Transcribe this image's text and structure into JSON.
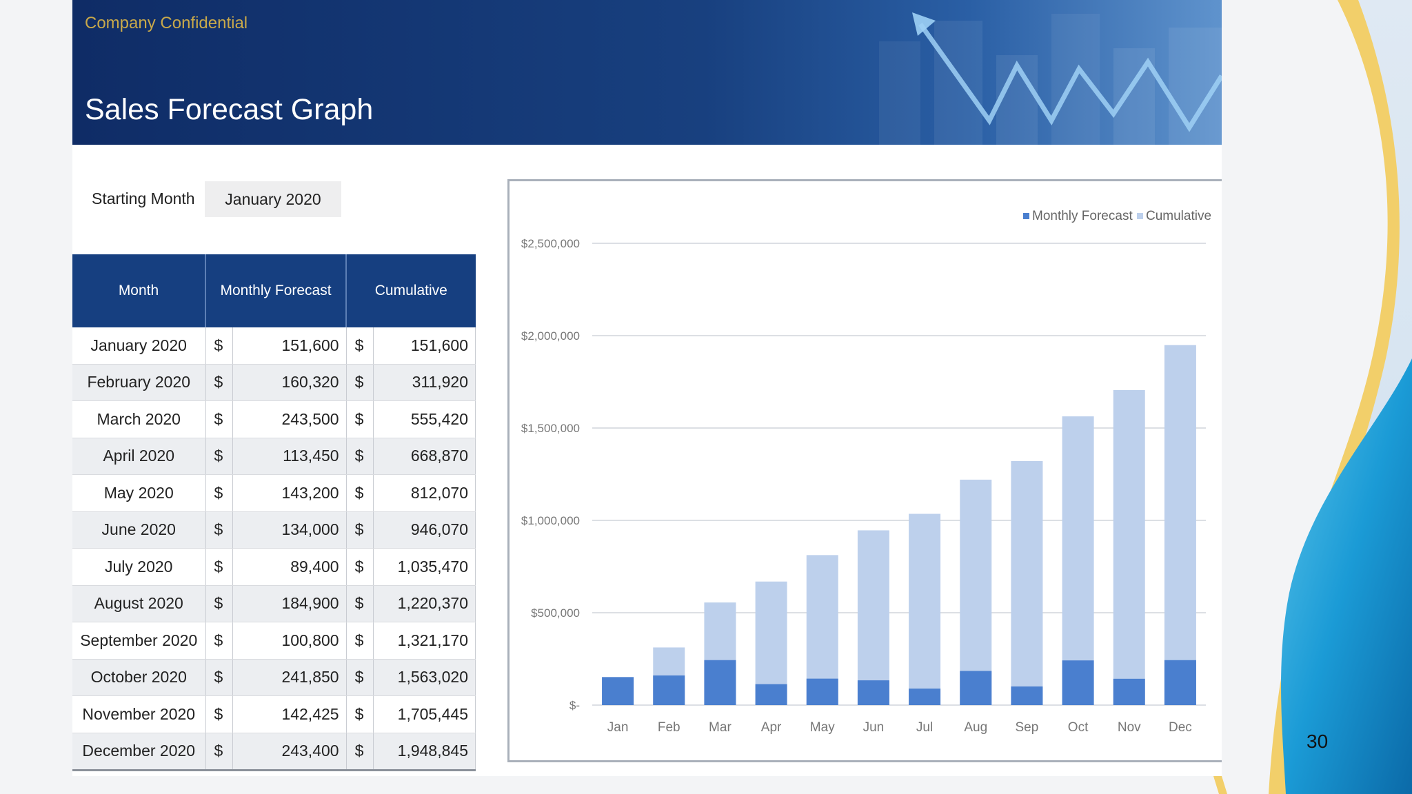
{
  "header": {
    "confidential": "Company Confidential",
    "title": "Sales Forecast Graph"
  },
  "inputs": {
    "starting_month_label": "Starting Month",
    "starting_month_value": "January 2020"
  },
  "table": {
    "headers": [
      "Month",
      "Monthly Forecast",
      "Cumulative"
    ],
    "currency_symbol": "$",
    "rows": [
      {
        "month": "January 2020",
        "forecast": "151,600",
        "cumulative": "151,600"
      },
      {
        "month": "February 2020",
        "forecast": "160,320",
        "cumulative": "311,920"
      },
      {
        "month": "March 2020",
        "forecast": "243,500",
        "cumulative": "555,420"
      },
      {
        "month": "April 2020",
        "forecast": "113,450",
        "cumulative": "668,870"
      },
      {
        "month": "May 2020",
        "forecast": "143,200",
        "cumulative": "812,070"
      },
      {
        "month": "June 2020",
        "forecast": "134,000",
        "cumulative": "946,070"
      },
      {
        "month": "July 2020",
        "forecast": "89,400",
        "cumulative": "1,035,470"
      },
      {
        "month": "August 2020",
        "forecast": "184,900",
        "cumulative": "1,220,370"
      },
      {
        "month": "September 2020",
        "forecast": "100,800",
        "cumulative": "1,321,170"
      },
      {
        "month": "October 2020",
        "forecast": "241,850",
        "cumulative": "1,563,020"
      },
      {
        "month": "November 2020",
        "forecast": "142,425",
        "cumulative": "1,705,445"
      },
      {
        "month": "December 2020",
        "forecast": "243,400",
        "cumulative": "1,948,845"
      }
    ]
  },
  "chart_data": {
    "type": "bar",
    "categories": [
      "Jan",
      "Feb",
      "Mar",
      "Apr",
      "May",
      "Jun",
      "Jul",
      "Aug",
      "Sep",
      "Oct",
      "Nov",
      "Dec"
    ],
    "series": [
      {
        "name": "Monthly Forecast",
        "values": [
          151600,
          160320,
          243500,
          113450,
          143200,
          134000,
          89400,
          184900,
          100800,
          241850,
          142425,
          243400
        ]
      },
      {
        "name": "Cumulative",
        "values": [
          151600,
          311920,
          555420,
          668870,
          812070,
          946070,
          1035470,
          1220370,
          1321170,
          1563020,
          1705445,
          1948845
        ]
      }
    ],
    "ylim": [
      0,
      2500000
    ],
    "y_ticks": [
      0,
      500000,
      1000000,
      1500000,
      2000000,
      2500000
    ],
    "y_tick_labels": [
      "$-",
      "$500,000",
      "$1,000,000",
      "$1,500,000",
      "$2,000,000",
      "$2,500,000"
    ],
    "grid": true,
    "legend": "top-right",
    "colors": {
      "Monthly Forecast": "#4a7fcf",
      "Cumulative": "#bdd0ec"
    }
  },
  "page_number": "30",
  "colors": {
    "banner": "#163f80",
    "header_cell": "#163f80",
    "accent_gold": "#f2cf6a",
    "accent_blue": "#1990cf"
  }
}
